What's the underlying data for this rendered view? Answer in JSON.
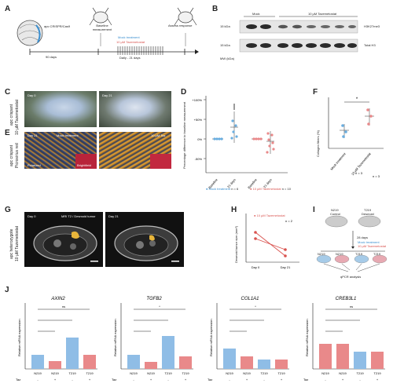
{
  "panels": {
    "A": {
      "label": "A",
      "embryo_text": "apc CRISPR/Cas9",
      "time_text": "90 days",
      "baseline": "Baseline measurement",
      "treatment_title": "Mock treatment",
      "treatment_sub": "10 µM Tazemetostat",
      "daily": "Daily - 21 days",
      "assess": "Assess response"
    },
    "B": {
      "label": "B",
      "col1": "Mock",
      "col2": "10 µM Tazemetostat",
      "kda1": "15 kDa",
      "kda2": "15 kDa",
      "band1": "H3K27me3",
      "band2": "Total H3",
      "mw": "MW (kDa)"
    },
    "C": {
      "label": "C",
      "side1": "apc crispant",
      "side2": "10 µM Tazemetostat",
      "img1": "Day 0",
      "img2": "Day 21"
    },
    "E": {
      "label": "E",
      "side1": "apc crispant",
      "side2": "Picrosirius red",
      "img1": "Day 21",
      "img1b": "Mock treatment",
      "img2": "10 µM Taz",
      "sub1": "Polarized",
      "sub2": "Brightfield"
    },
    "D": {
      "label": "D",
      "ylabel": "Percentage difference to baseline measurement",
      "yticks": [
        "+100%",
        "+50%",
        "0%",
        "-50%"
      ],
      "xticks": [
        "Baseline",
        "21 days",
        "Baseline",
        "21 days"
      ],
      "legend1": "Mock treatment",
      "legend1n": "n = 6",
      "legend2": "10 µM Tazemetostat",
      "legend2n": "n = 10"
    },
    "F": {
      "label": "F",
      "ylabel": "Collagen fibers (%)",
      "marker": "*",
      "xticks": [
        "Mock treatment",
        "10 µM Tazemetostat"
      ],
      "n1": "n = 3",
      "n2": "n = 3"
    },
    "G": {
      "label": "G",
      "side1": "apc heterozygote",
      "side2": "10 µM Tazemetostat",
      "img1": "Day 0",
      "img1b": "MRI T2 / Desmoid tumor",
      "img2": "Day 21"
    },
    "H": {
      "label": "H",
      "legend": "10 µM Tazemetostat",
      "n": "n = 2",
      "ylabel": "Desmoid tumor size (mm²)",
      "xticks": [
        "Day 0",
        "Day 21"
      ]
    },
    "I": {
      "label": "I",
      "dish1": "N219",
      "dish1b": "Control",
      "dish2": "T219",
      "dish2b": "Desmoid",
      "time": "28 days",
      "treat1": "Mock treatment",
      "treat2": "10 µM Tazemetostat",
      "groups": [
        "N219",
        "N219",
        "T219",
        "T219"
      ],
      "assay": "qPCR analysis"
    },
    "J": {
      "label": "J",
      "genes": [
        "AXIN2",
        "TGFB2",
        "COL1A1",
        "CREB3L1"
      ],
      "ylabels": [
        "Relative mRNA expression",
        "Relative mRNA expression",
        "Relative mRNA expression",
        "Relative mRNA expression"
      ],
      "xticks": [
        "N219",
        "N219",
        "T219",
        "T219"
      ],
      "taz_label": "Taz",
      "taz_signs": [
        "-",
        "+",
        "-",
        "+"
      ],
      "sig": [
        "ns",
        "*",
        "*",
        "ns"
      ]
    }
  },
  "chart_data": [
    {
      "type": "scatter",
      "panel": "D",
      "series": [
        {
          "name": "Mock treatment",
          "x": [
            "Baseline",
            "21 days"
          ],
          "values": [
            0,
            30
          ]
        },
        {
          "name": "10 µM Tazemetostat",
          "x": [
            "Baseline",
            "21 days"
          ],
          "values": [
            0,
            -5
          ]
        }
      ]
    },
    {
      "type": "bar",
      "panel": "F",
      "categories": [
        "Mock treatment",
        "10 µM Tazemetostat"
      ],
      "values": [
        13,
        21
      ]
    },
    {
      "type": "line",
      "panel": "H",
      "x": [
        "Day 0",
        "Day 21"
      ],
      "series": [
        {
          "name": "10 µM Tazemetostat",
          "values": [
            22,
            6
          ]
        },
        {
          "name": "10 µM Tazemetostat",
          "values": [
            18,
            10
          ]
        }
      ]
    },
    {
      "type": "bar",
      "panel": "J-AXIN2",
      "categories": [
        "N219",
        "N219",
        "T219",
        "T219"
      ],
      "values": [
        1.0,
        0.5,
        2.2,
        1.0
      ]
    },
    {
      "type": "bar",
      "panel": "J-TGFB2",
      "categories": [
        "N219",
        "N219",
        "T219",
        "T219"
      ],
      "values": [
        1.0,
        0.5,
        2.3,
        0.9
      ]
    },
    {
      "type": "bar",
      "panel": "J-COL1A1",
      "categories": [
        "N219",
        "N219",
        "T219",
        "T219"
      ],
      "values": [
        1.0,
        0.7,
        0.5,
        0.5
      ]
    },
    {
      "type": "bar",
      "panel": "J-CREB3L1",
      "categories": [
        "N219",
        "N219",
        "T219",
        "T219"
      ],
      "values": [
        1.0,
        1.0,
        0.7,
        0.7
      ]
    }
  ]
}
